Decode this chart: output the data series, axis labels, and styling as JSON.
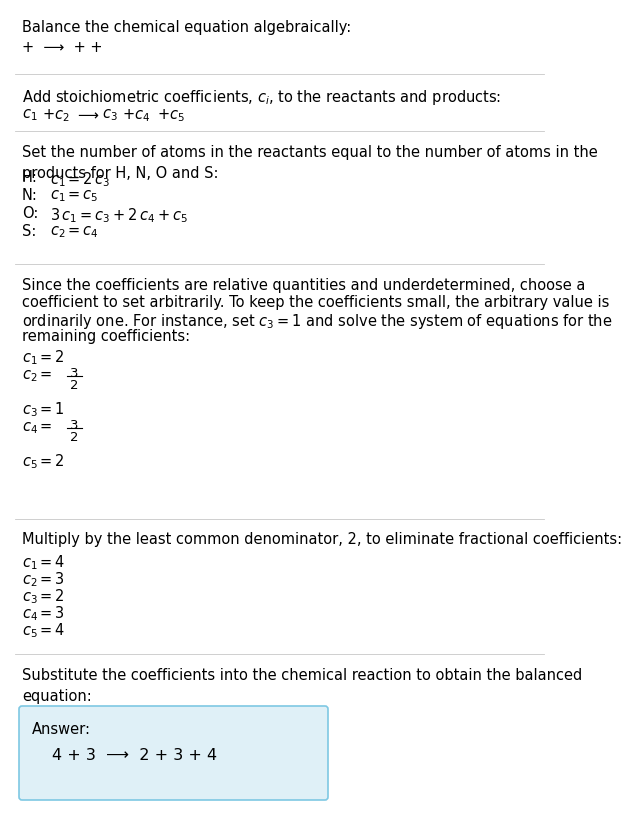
{
  "title": "Balance the chemical equation algebraically:",
  "section1_line1": "+  ⟶  + +",
  "section2_header_plain": "Add stoichiometric coefficients, ",
  "section2_header_ci": "c",
  "section2_header_i": "i",
  "section2_header_end": ", to the reactants and products:",
  "section3_header": "Set the number of atoms in the reactants equal to the number of atoms in the\nproducts for H, N, O and S:",
  "section4_header_line1": "Since the coefficients are relative quantities and underdetermined, choose a",
  "section4_header_line2": "coefficient to set arbitrarily. To keep the coefficients small, the arbitrary value is",
  "section4_header_line3": "ordinarily one. For instance, set ",
  "section4_header_line3b": " and solve the system of equations for the",
  "section4_header_line4": "remaining coefficients:",
  "section5_header": "Multiply by the least common denominator, 2, to eliminate fractional coefficients:",
  "section6_header": "Substitute the coefficients into the chemical reaction to obtain the balanced\nequation:",
  "answer_label": "Answer:",
  "answer_line": "4 + 3  ⟶  2 + 3 + 4",
  "bg_color": "#ffffff",
  "text_color": "#000000",
  "answer_bg": "#dff0f7",
  "answer_border": "#7ec8e3",
  "line_color": "#c8c8c8",
  "font_size": 10.5,
  "answer_font_size": 11.5
}
